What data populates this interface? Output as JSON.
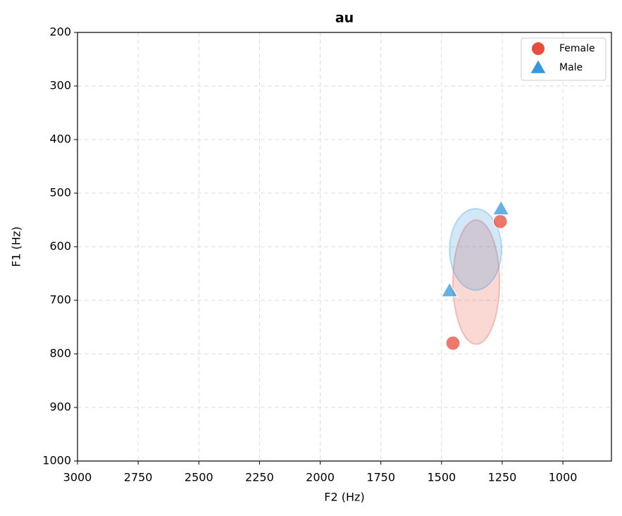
{
  "chart_data": {
    "type": "scatter",
    "title": "au",
    "xlabel": "F2 (Hz)",
    "ylabel": "F1 (Hz)",
    "xlim": [
      3000,
      800
    ],
    "ylim": [
      1000,
      200
    ],
    "xticks": [
      3000,
      2750,
      2500,
      2250,
      2000,
      1750,
      1500,
      1250,
      1000
    ],
    "yticks": [
      200,
      300,
      400,
      500,
      600,
      700,
      800,
      900,
      1000
    ],
    "x_inverted": true,
    "y_inverted": true,
    "grid": true,
    "legend": "upper right",
    "series": [
      {
        "name": "Female",
        "color": "#e74c3c",
        "marker": "circle",
        "x": [
          1453,
          1258
        ],
        "values": [
          780,
          553
        ],
        "ellipse": {
          "cx": 1357,
          "cy": 666,
          "rx": 96,
          "ry": 116
        }
      },
      {
        "name": "Male",
        "color": "#3498db",
        "marker": "triangle",
        "x": [
          1467,
          1255
        ],
        "values": [
          682,
          529
        ],
        "ellipse": {
          "cx": 1360,
          "cy": 605,
          "rx": 107,
          "ry": 76
        }
      }
    ]
  }
}
